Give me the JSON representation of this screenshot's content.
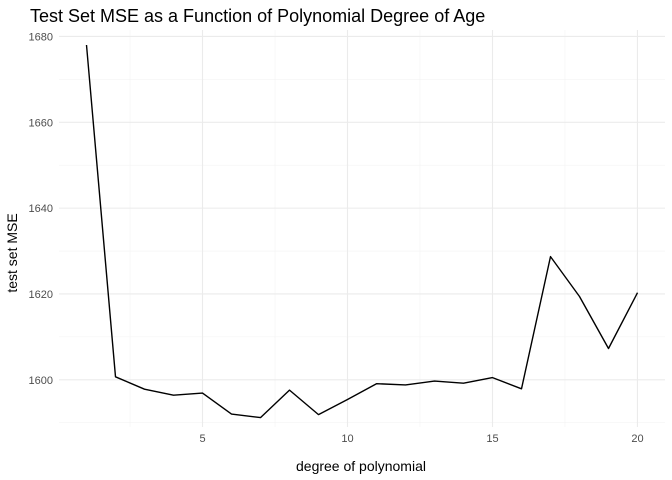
{
  "chart_data": {
    "type": "line",
    "title": "Test Set MSE as a Function of Polynomial Degree of Age",
    "xlabel": "degree of polynomial",
    "ylabel": "test set MSE",
    "x": [
      1,
      2,
      3,
      4,
      5,
      6,
      7,
      8,
      9,
      10,
      11,
      12,
      13,
      14,
      15,
      16,
      17,
      18,
      19,
      20
    ],
    "series": [
      {
        "values": [
          1678.0,
          1600.7,
          1597.8,
          1596.4,
          1596.9,
          1592.0,
          1591.2,
          1597.6,
          1591.9,
          1595.4,
          1599.1,
          1598.8,
          1599.7,
          1599.2,
          1600.5,
          1597.9,
          1628.7,
          1619.4,
          1607.3,
          1620.3
        ]
      }
    ],
    "xlim": [
      0.05,
      20.95
    ],
    "ylim": [
      1589.0,
      1681.5
    ],
    "xticks": [
      5,
      10,
      15,
      20
    ],
    "xtick_labels": [
      "5",
      "10",
      "15",
      "20"
    ],
    "yticks": [
      1600,
      1620,
      1640,
      1660,
      1680
    ],
    "ytick_labels": [
      "1600",
      "1620",
      "1640",
      "1660",
      "1680"
    ],
    "grid": true,
    "line_color": "#000000"
  }
}
